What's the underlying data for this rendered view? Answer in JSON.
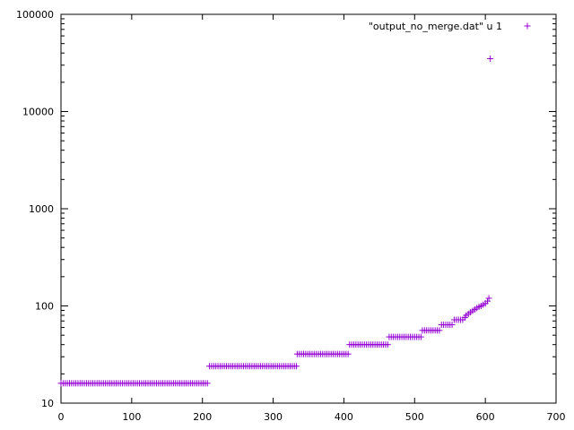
{
  "chart_data": {
    "type": "scatter",
    "title": "",
    "xlabel": "",
    "ylabel": "",
    "xlim": [
      0,
      700
    ],
    "ylim": [
      10,
      100000
    ],
    "y_scale": "log",
    "grid": false,
    "legend_position": "top-right",
    "x_ticks": [
      "0",
      "100",
      "200",
      "300",
      "400",
      "500",
      "600",
      "700"
    ],
    "y_ticks": [
      "10",
      "100",
      "1000",
      "10000",
      "100000"
    ],
    "marker": "plus",
    "series": [
      {
        "name": "\"output_no_merge.dat\" u 1",
        "color": "#9400d3",
        "segments": [
          {
            "x_start": 0,
            "x_end": 209,
            "value": 16
          },
          {
            "x_start": 210,
            "x_end": 333,
            "value": 24
          },
          {
            "x_start": 334,
            "x_end": 407,
            "value": 32
          },
          {
            "x_start": 408,
            "x_end": 463,
            "value": 40
          },
          {
            "x_start": 464,
            "x_end": 510,
            "value": 48
          },
          {
            "x_start": 511,
            "x_end": 537,
            "value": 56
          },
          {
            "x_start": 538,
            "x_end": 555,
            "value": 64
          },
          {
            "x_start": 556,
            "x_end": 570,
            "value": 72
          }
        ],
        "points": [
          {
            "x": 571,
            "y": 76
          },
          {
            "x": 573,
            "y": 80
          },
          {
            "x": 576,
            "y": 83
          },
          {
            "x": 579,
            "y": 86
          },
          {
            "x": 582,
            "y": 89
          },
          {
            "x": 585,
            "y": 92
          },
          {
            "x": 588,
            "y": 95
          },
          {
            "x": 591,
            "y": 98
          },
          {
            "x": 594,
            "y": 100
          },
          {
            "x": 597,
            "y": 103
          },
          {
            "x": 600,
            "y": 106
          },
          {
            "x": 603,
            "y": 112
          },
          {
            "x": 605,
            "y": 120
          },
          {
            "x": 607,
            "y": 35000
          }
        ]
      }
    ]
  }
}
